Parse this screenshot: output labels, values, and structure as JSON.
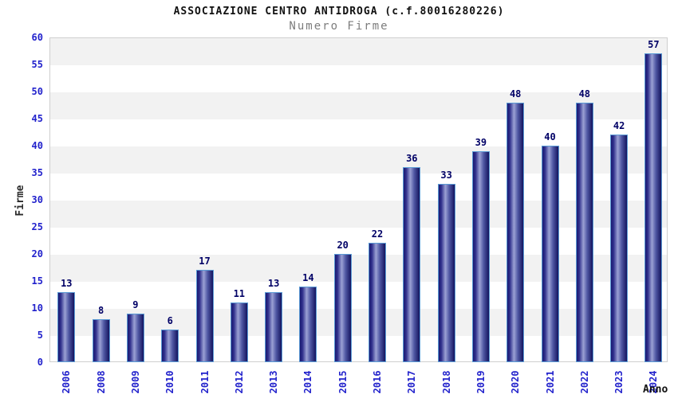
{
  "chart_data": {
    "type": "bar",
    "title": "ASSOCIAZIONE CENTRO ANTIDROGA (c.f.80016280226)",
    "subtitle": "Numero Firme",
    "xlabel": "Anno",
    "ylabel": "Firme",
    "categories": [
      "2006",
      "2008",
      "2009",
      "2010",
      "2011",
      "2012",
      "2013",
      "2014",
      "2015",
      "2016",
      "2017",
      "2018",
      "2019",
      "2020",
      "2021",
      "2022",
      "2023",
      "2024"
    ],
    "values": [
      13,
      8,
      9,
      6,
      17,
      11,
      13,
      14,
      20,
      22,
      36,
      33,
      39,
      48,
      40,
      48,
      42,
      57
    ],
    "ylim": [
      0,
      60
    ],
    "ytick_step": 5,
    "yticks": [
      0,
      5,
      10,
      15,
      20,
      25,
      30,
      35,
      40,
      45,
      50,
      55,
      60
    ],
    "legend": "none",
    "grid": "horizontal-bands",
    "colors": {
      "bar_dark": "#14145e",
      "bar_mid": "#9ba1d4",
      "bar_border": "#5b9bd5",
      "tick_label": "#2222cc",
      "value_label": "#000066",
      "band_gray": "#f2f2f2",
      "band_white": "#ffffff",
      "title": "#111111",
      "subtitle": "#7d7d7d"
    }
  }
}
